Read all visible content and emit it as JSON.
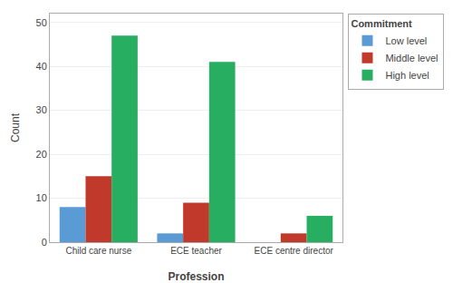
{
  "chart_data": {
    "type": "bar",
    "categories": [
      "Child care nurse",
      "ECE teacher",
      "ECE centre director"
    ],
    "series": [
      {
        "name": "Low level",
        "color": "#5B9BD5",
        "values": [
          8,
          2,
          0
        ]
      },
      {
        "name": "Middle level",
        "color": "#C0392B",
        "values": [
          15,
          9,
          2
        ]
      },
      {
        "name": "High level",
        "color": "#27AE60",
        "values": [
          47,
          41,
          6
        ]
      }
    ],
    "legend_title": "Commitment",
    "xlabel": "Profession",
    "ylabel": "Count",
    "ylim": [
      0,
      52
    ],
    "yticks": [
      0,
      10,
      20,
      30,
      40,
      50
    ],
    "grid": true,
    "legend": "right"
  }
}
